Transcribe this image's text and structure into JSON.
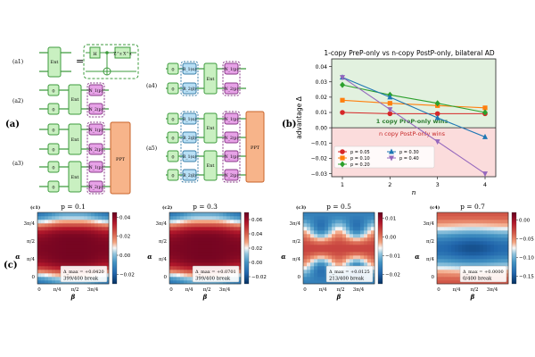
{
  "circuits": {
    "panel_a": "(a)",
    "a1": "(a1)",
    "a2": "(a2)",
    "a3": "(a3)",
    "a4": "(a4)",
    "a5": "(a5)",
    "ent": "Ent",
    "zero": "0",
    "h": "H",
    "zx": "Z^z X^x",
    "n1": "N_1(p)",
    "n2": "N_2(p)",
    "r1": "R_1(α)",
    "r2": "R_2(β)",
    "ppt": "PPT",
    "colors": {
      "green_fill": "#c9f0c1",
      "green_stroke": "#3e9b3e",
      "purple_fill": "#e7a2e7",
      "purple_stroke": "#8a3b8a",
      "blue_fill": "#b8dff5",
      "blue_stroke": "#3b7fa8",
      "orange_fill": "#f7b48a",
      "orange_stroke": "#c8632a"
    }
  },
  "chart_data": [
    {
      "type": "line",
      "panel_label": "(b)",
      "title": "1-copy PreP-only vs n-copy PostP-only, bilateral AD",
      "xlabel": "n",
      "ylabel": "advantage Δ",
      "x": [
        1,
        2,
        3,
        4
      ],
      "xticks": [
        "1",
        "2",
        "3",
        "4"
      ],
      "ylim": [
        -0.032,
        0.045
      ],
      "yticks": [
        0.04,
        0.03,
        0.02,
        0.01,
        0.0,
        -0.01,
        -0.02,
        -0.03
      ],
      "ytick_labels": [
        "0.04",
        "0.03",
        "0.02",
        "0.01",
        "0.00",
        "−0.01",
        "−0.02",
        "−0.03"
      ],
      "positive_region_label": "1 copy PreP-only wins",
      "negative_region_label": "n copy PostP-only wins",
      "region_colors": {
        "positive": "#e2f1df",
        "negative": "#fbdcdc"
      },
      "positive_label_color": "#2f7d32",
      "negative_label_color": "#c62828",
      "legend_placement": "lower-left",
      "series": [
        {
          "name": "p = 0.05",
          "color": "#d62728",
          "marker": "circle",
          "values": [
            0.01,
            0.0092,
            0.0092,
            0.0092
          ]
        },
        {
          "name": "p = 0.10",
          "color": "#ff7f0e",
          "marker": "square",
          "values": [
            0.018,
            0.016,
            0.0145,
            0.013
          ]
        },
        {
          "name": "p = 0.20",
          "color": "#2ca02c",
          "marker": "diamond",
          "values": [
            0.028,
            0.0215,
            0.016,
            0.01
          ]
        },
        {
          "name": "p = 0.30",
          "color": "#1f77b4",
          "marker": "triangle-up",
          "values": [
            0.033,
            0.02,
            0.0065,
            -0.006
          ]
        },
        {
          "name": "p = 0.40",
          "color": "#9467bd",
          "marker": "triangle-down",
          "values": [
            0.033,
            0.012,
            -0.009,
            -0.03
          ]
        }
      ]
    },
    {
      "type": "heatmap",
      "panel_label": "(c1)",
      "title": "p = 0.1",
      "xlabel": "β",
      "ylabel": "α",
      "xticks": [
        "0",
        "π/4",
        "π/2",
        "3π/4"
      ],
      "yticks": [
        "3π/4",
        "π/2",
        "π/4",
        "0"
      ],
      "colorbar_ticks": [
        "0.04",
        "0.02",
        "0.00",
        "−0.02"
      ],
      "colorbar_range": [
        -0.03,
        0.045
      ],
      "delta_max": "Δ_max = +0.0420",
      "breaks": "399/400 break",
      "pattern": "red-band"
    },
    {
      "type": "heatmap",
      "panel_label": "(c2)",
      "title": "p = 0.3",
      "xlabel": "β",
      "ylabel": "α",
      "xticks": [
        "0",
        "π/4",
        "π/2",
        "3π/4"
      ],
      "yticks": [
        "3π/4",
        "π/2",
        "π/4",
        "0"
      ],
      "colorbar_ticks": [
        "0.06",
        "0.04",
        "0.02",
        "0.00",
        "−0.02"
      ],
      "colorbar_range": [
        -0.03,
        0.07
      ],
      "delta_max": "Δ_max = +0.0701",
      "breaks": "399/400 break",
      "pattern": "red-band"
    },
    {
      "type": "heatmap",
      "panel_label": "(c3)",
      "title": "p = 0.5",
      "xlabel": "β",
      "ylabel": "α",
      "xticks": [
        "0",
        "π/4",
        "π/2",
        "3π/4"
      ],
      "yticks": [
        "3π/4",
        "π/2",
        "π/4",
        "0"
      ],
      "colorbar_ticks": [
        "0.01",
        "0.00",
        "−0.01",
        "−0.02"
      ],
      "colorbar_range": [
        -0.025,
        0.013
      ],
      "delta_max": "Δ_max = +0.0125",
      "breaks": "213/400 break",
      "pattern": "mixed"
    },
    {
      "type": "heatmap",
      "panel_label": "(c4)",
      "title": "p = 0.7",
      "xlabel": "β",
      "ylabel": "α",
      "xticks": [
        "0",
        "π/4",
        "π/2",
        "3π/4"
      ],
      "yticks": [
        "3π/4",
        "π/2",
        "π/4",
        "0"
      ],
      "colorbar_ticks": [
        "0.00",
        "−0.05",
        "−0.10",
        "−0.15"
      ],
      "colorbar_range": [
        -0.17,
        0.02
      ],
      "delta_max": "Δ_max = +0.0000",
      "breaks": "0/400 break",
      "pattern": "blue"
    }
  ],
  "panel_c_label": "(c)"
}
